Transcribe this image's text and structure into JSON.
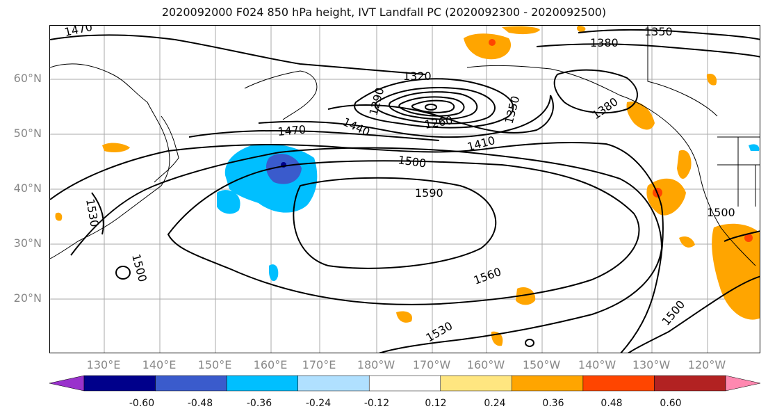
{
  "title": "2020092000 F024 850 hPa height, IVT Landfall PC (2020092300 - 2020092500)",
  "lat_labels": [
    "60°N",
    "50°N",
    "40°N",
    "30°N",
    "20°N"
  ],
  "lon_labels": [
    "130°E",
    "140°E",
    "150°E",
    "160°E",
    "170°E",
    "180°W",
    "170°W",
    "160°W",
    "150°W",
    "140°W",
    "130°W",
    "120°W"
  ],
  "contour_labels": [
    "1470",
    "1350",
    "1380",
    "1320",
    "1290",
    "1260",
    "1380",
    "1350",
    "1410",
    "1440",
    "1470",
    "1500",
    "1590",
    "1560",
    "1530",
    "1500",
    "1500",
    "1500",
    "1530"
  ],
  "colorbar": {
    "ticks": [
      "-0.60",
      "-0.48",
      "-0.36",
      "-0.24",
      "-0.12",
      "0.12",
      "0.24",
      "0.36",
      "0.48",
      "0.60"
    ],
    "colors": [
      "#9932cc",
      "#00008b",
      "#3a5bcc",
      "#00bfff",
      "#b0e0ff",
      "#ffffff",
      "#ffe680",
      "#ffa500",
      "#ff4500",
      "#b22222",
      "#ff88b0"
    ]
  }
}
